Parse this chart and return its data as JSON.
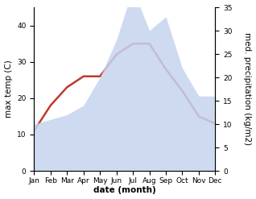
{
  "months": [
    "Jan",
    "Feb",
    "Mar",
    "Apr",
    "May",
    "Jun",
    "Jul",
    "Aug",
    "Sep",
    "Oct",
    "Nov",
    "Dec"
  ],
  "temperature": [
    11,
    18,
    23,
    26,
    26,
    32,
    35,
    35,
    28,
    22,
    15,
    13
  ],
  "precipitation": [
    10,
    11,
    12,
    14,
    20,
    28,
    39,
    30,
    33,
    22,
    16,
    16
  ],
  "temp_color": "#c0392b",
  "precip_fill_color": "#c5d4ee",
  "precip_fill_alpha": 0.85,
  "background_color": "#ffffff",
  "ylim_left": [
    0,
    45
  ],
  "ylim_right": [
    0,
    35
  ],
  "yticks_left": [
    0,
    10,
    20,
    30,
    40
  ],
  "yticks_right": [
    0,
    5,
    10,
    15,
    20,
    25,
    30,
    35
  ],
  "ylabel_left": "max temp (C)",
  "ylabel_right": "med. precipitation (kg/m2)",
  "xlabel": "date (month)",
  "label_fontsize": 7.5,
  "tick_fontsize": 6.5,
  "line_width": 1.8
}
